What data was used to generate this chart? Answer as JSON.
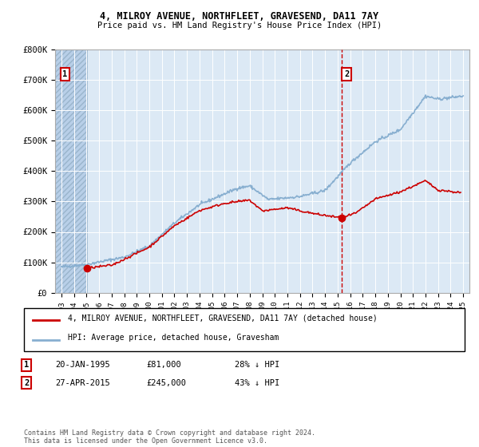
{
  "title": "4, MILROY AVENUE, NORTHFLEET, GRAVESEND, DA11 7AY",
  "subtitle": "Price paid vs. HM Land Registry's House Price Index (HPI)",
  "ylim": [
    0,
    800000
  ],
  "yticks": [
    0,
    100000,
    200000,
    300000,
    400000,
    500000,
    600000,
    700000,
    800000
  ],
  "ytick_labels": [
    "£0",
    "£100K",
    "£200K",
    "£300K",
    "£400K",
    "£500K",
    "£600K",
    "£700K",
    "£800K"
  ],
  "xlim_start": 1992.5,
  "xlim_end": 2025.5,
  "plot_bg_color": "#dce9f5",
  "hatch_color": "#b8cfe8",
  "grid_color": "#ffffff",
  "red_line_color": "#cc0000",
  "blue_line_color": "#88afd0",
  "sale1_date": 1995.05,
  "sale1_price": 81000,
  "sale2_date": 2015.32,
  "sale2_price": 245000,
  "legend_red": "4, MILROY AVENUE, NORTHFLEET, GRAVESEND, DA11 7AY (detached house)",
  "legend_blue": "HPI: Average price, detached house, Gravesham",
  "annotation1_date": "20-JAN-1995",
  "annotation1_price": "£81,000",
  "annotation1_hpi": "28% ↓ HPI",
  "annotation2_date": "27-APR-2015",
  "annotation2_price": "£245,000",
  "annotation2_hpi": "43% ↓ HPI",
  "footer": "Contains HM Land Registry data © Crown copyright and database right 2024.\nThis data is licensed under the Open Government Licence v3.0."
}
